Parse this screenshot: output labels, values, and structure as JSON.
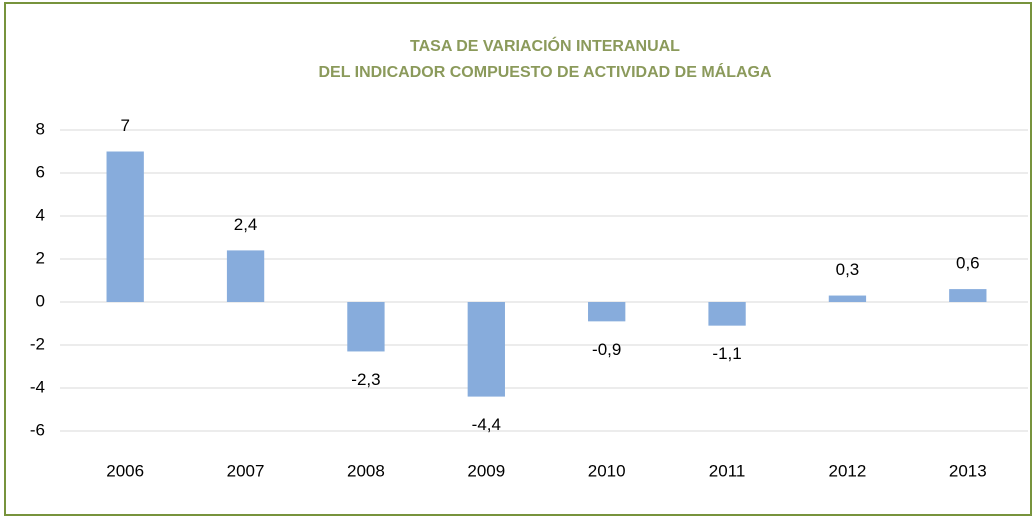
{
  "chart_data": {
    "type": "bar",
    "title": [
      "TASA DE VARIACIÓN INTERANUAL",
      "DEL INDICADOR COMPUESTO DE ACTIVIDAD DE MÁLAGA"
    ],
    "categories": [
      "2006",
      "2007",
      "2008",
      "2009",
      "2010",
      "2011",
      "2012",
      "2013"
    ],
    "values": [
      7,
      2.4,
      -2.3,
      -4.4,
      -0.9,
      -1.1,
      0.3,
      0.6
    ],
    "value_labels": [
      "7",
      "2,4",
      "-2,3",
      "-4,4",
      "-0,9",
      "-1,1",
      "0,3",
      "0,6"
    ],
    "color": "#87acdc",
    "ylim": [
      -6,
      8
    ],
    "yticks": [
      -6,
      -4,
      -2,
      0,
      2,
      4,
      6,
      8
    ],
    "grid": true
  }
}
